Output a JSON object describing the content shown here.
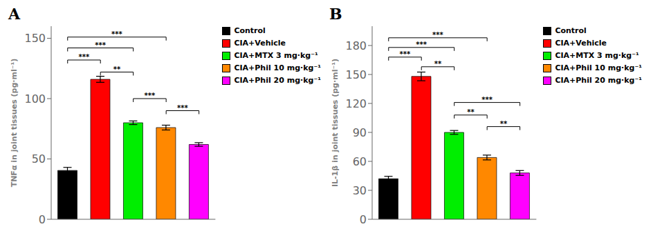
{
  "chart_data": [
    {
      "type": "bar",
      "title": "A",
      "y_label": "TNFα in joint tissues (pg·ml⁻¹)",
      "categories": [
        "Control",
        "CIA+Vehicle",
        "CIA+MTX 3 mg·kg⁻¹",
        "CIA+Phil 10 mg·kg⁻¹",
        "CIA+Phil 20 mg·kg⁻¹"
      ],
      "values": [
        40.5,
        116.0,
        80.0,
        76.0,
        62.0
      ],
      "errors": [
        2.5,
        2.5,
        1.5,
        2.0,
        1.5
      ],
      "colors": [
        "#000000",
        "#ff0000",
        "#00ee00",
        "#ff8800",
        "#ff00ff"
      ],
      "ylim": [
        0,
        160
      ],
      "yticks": [
        0,
        50,
        100,
        150
      ],
      "tick_labels": "y",
      "legend": "upper right",
      "annotations": [
        {
          "text": "***",
          "from": "Control",
          "to": "CIA+Vehicle",
          "y": 132
        },
        {
          "text": "**",
          "from": "CIA+Vehicle",
          "to": "CIA+MTX 3 mg·kg⁻¹",
          "y": 122
        },
        {
          "text": "***",
          "from": "Control",
          "to": "CIA+MTX 3 mg·kg⁻¹",
          "y": 142
        },
        {
          "text": "***",
          "from": "Control",
          "to": "CIA+Phil 10 mg·kg⁻¹",
          "y": 151
        },
        {
          "text": "***",
          "from": "CIA+MTX 3 mg·kg⁻¹",
          "to": "CIA+Phil 10 mg·kg⁻¹",
          "y": 100
        },
        {
          "text": "***",
          "from": "CIA+Phil 10 mg·kg⁻¹",
          "to": "CIA+Phil 20 mg·kg⁻¹",
          "y": 90
        }
      ]
    },
    {
      "type": "bar",
      "title": "B",
      "y_label": "IL-1β in joint tissues (pg·ml⁻¹)",
      "categories": [
        "Control",
        "CIA+Vehicle",
        "CIA+MTX 3 mg·kg⁻¹",
        "CIA+Phil 10 mg·kg⁻¹",
        "CIA+Phil 20 mg·kg⁻¹"
      ],
      "values": [
        42.0,
        148.0,
        90.0,
        64.0,
        48.0
      ],
      "errors": [
        2.5,
        4.5,
        2.0,
        2.5,
        2.5
      ],
      "colors": [
        "#000000",
        "#ff0000",
        "#00ee00",
        "#ff8800",
        "#ff00ff"
      ],
      "ylim": [
        0,
        200
      ],
      "yticks": [
        0,
        30,
        60,
        90,
        120,
        150,
        180
      ],
      "tick_labels": "y",
      "legend": "upper right",
      "annotations": [
        {
          "text": "***",
          "from": "Control",
          "to": "CIA+Vehicle",
          "y": 168
        },
        {
          "text": "**",
          "from": "CIA+Vehicle",
          "to": "CIA+MTX 3 mg·kg⁻¹",
          "y": 158
        },
        {
          "text": "***",
          "from": "Control",
          "to": "CIA+MTX 3 mg·kg⁻¹",
          "y": 178
        },
        {
          "text": "***",
          "from": "Control",
          "to": "CIA+Phil 10 mg·kg⁻¹",
          "y": 188
        },
        {
          "text": "**",
          "from": "CIA+MTX 3 mg·kg⁻¹",
          "to": "CIA+Phil 10 mg·kg⁻¹",
          "y": 108
        },
        {
          "text": "***",
          "from": "CIA+MTX 3 mg·kg⁻¹",
          "to": "CIA+Phil 20 mg·kg⁻¹",
          "y": 121
        },
        {
          "text": "**",
          "from": "CIA+Phil 10 mg·kg⁻¹",
          "to": "CIA+Phil 20 mg·kg⁻¹",
          "y": 96
        }
      ]
    }
  ]
}
